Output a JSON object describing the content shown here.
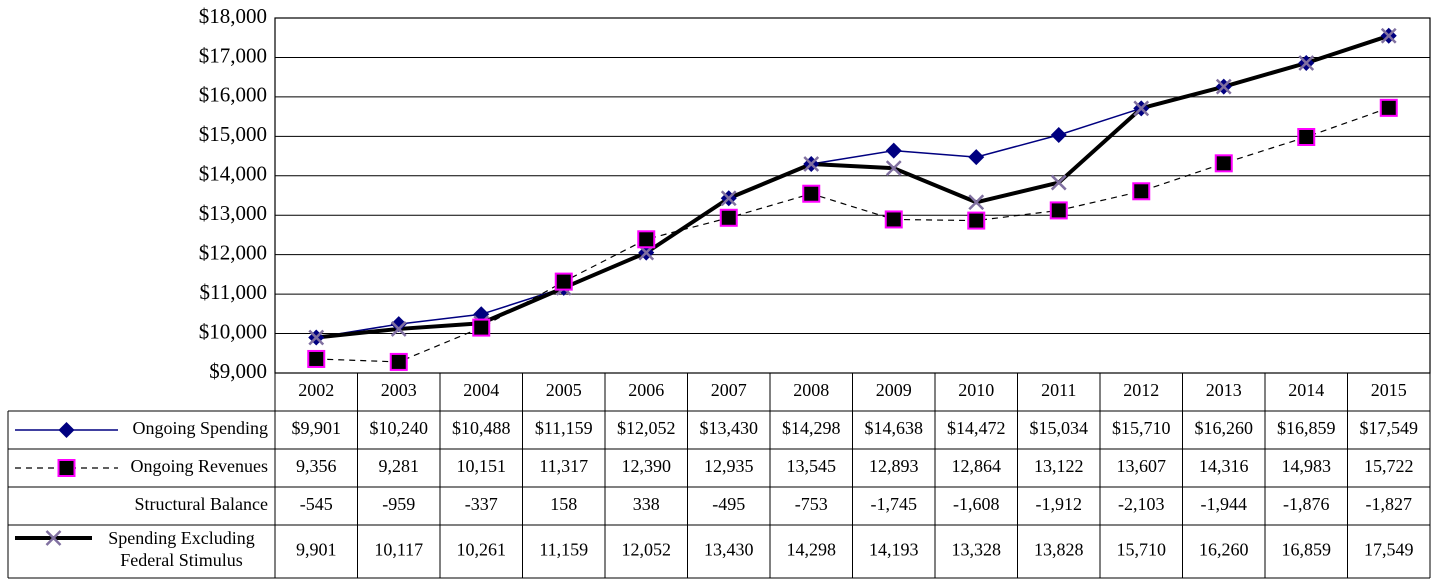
{
  "chart_data": {
    "type": "line",
    "categories": [
      "2002",
      "2003",
      "2004",
      "2005",
      "2006",
      "2007",
      "2008",
      "2009",
      "2010",
      "2011",
      "2012",
      "2013",
      "2014",
      "2015"
    ],
    "ylim": [
      9000,
      18000
    ],
    "yticks": [
      {
        "value": 9000,
        "label": "$9,000"
      },
      {
        "value": 10000,
        "label": "$10,000"
      },
      {
        "value": 11000,
        "label": "$11,000"
      },
      {
        "value": 12000,
        "label": "$12,000"
      },
      {
        "value": 13000,
        "label": "$13,000"
      },
      {
        "value": 14000,
        "label": "$14,000"
      },
      {
        "value": 15000,
        "label": "$15,000"
      },
      {
        "value": 16000,
        "label": "$16,000"
      },
      {
        "value": 17000,
        "label": "$17,000"
      },
      {
        "value": 18000,
        "label": "$18,000"
      }
    ],
    "grid": true,
    "series": [
      {
        "name": "Ongoing Spending",
        "color": "#000080",
        "marker": "diamond",
        "marker_color": "#000080",
        "line_width": 1.5,
        "dash": "none",
        "values": [
          9901,
          10240,
          10488,
          11159,
          12052,
          13430,
          14298,
          14638,
          14472,
          15034,
          15710,
          16260,
          16859,
          17549
        ],
        "value_labels": [
          "$9,901",
          "$10,240",
          "$10,488",
          "$11,159",
          "$12,052",
          "$13,430",
          "$14,298",
          "$14,638",
          "$14,472",
          "$15,034",
          "$15,710",
          "$16,260",
          "$16,859",
          "$17,549"
        ]
      },
      {
        "name": "Ongoing Revenues",
        "color": "#000000",
        "marker": "square",
        "marker_color": "#ff00ff",
        "line_width": 1.2,
        "dash": "6 5",
        "values": [
          9356,
          9281,
          10151,
          11317,
          12390,
          12935,
          13545,
          12893,
          12864,
          13122,
          13607,
          14316,
          14983,
          15722
        ],
        "value_labels": [
          "9,356",
          "9,281",
          "10,151",
          "11,317",
          "12,390",
          "12,935",
          "13,545",
          "12,893",
          "12,864",
          "13,122",
          "13,607",
          "14,316",
          "14,983",
          "15,722"
        ]
      },
      {
        "name": "Spending Excluding Federal Stimulus",
        "color": "#000000",
        "marker": "x",
        "marker_color": "#8070a0",
        "line_width": 4,
        "dash": "none",
        "values": [
          9901,
          10117,
          10261,
          11159,
          12052,
          13430,
          14298,
          14193,
          13328,
          13828,
          15710,
          16260,
          16859,
          17549
        ],
        "value_labels": [
          "9,901",
          "10,117",
          "10,261",
          "11,159",
          "12,052",
          "13,430",
          "14,298",
          "14,193",
          "13,328",
          "13,828",
          "15,710",
          "16,260",
          "16,859",
          "17,549"
        ]
      }
    ],
    "structural_balance": {
      "name": "Structural Balance",
      "values": [
        -545,
        -959,
        -337,
        158,
        338,
        -495,
        -753,
        -1745,
        -1608,
        -1912,
        -2103,
        -1944,
        -1876,
        -1827
      ],
      "value_labels": [
        "-545",
        "-959",
        "-337",
        "158",
        "338",
        "-495",
        "-753",
        "-1,745",
        "-1,608",
        "-1,912",
        "-2,103",
        "-1,944",
        "-1,876",
        "-1,827"
      ]
    }
  }
}
